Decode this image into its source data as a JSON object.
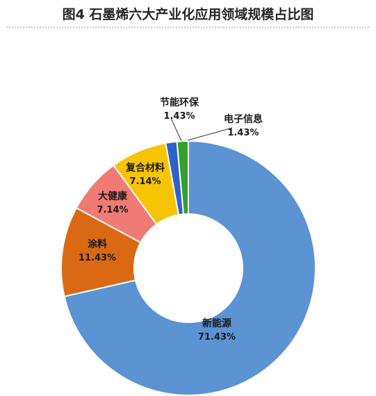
{
  "title": "图4 石墨烯六大产业化应用领域规模占比图",
  "chart_data": {
    "type": "donut",
    "title": "图4 石墨烯六大产业化应用领域规模占比图",
    "slices": [
      {
        "name": "新能源",
        "value": 71.43,
        "label": "71.43%",
        "color": "#5b93d3"
      },
      {
        "name": "涂料",
        "value": 11.43,
        "label": "11.43%",
        "color": "#d96a13"
      },
      {
        "name": "大健康",
        "value": 7.14,
        "label": "7.14%",
        "color": "#f07a74"
      },
      {
        "name": "复合材料",
        "value": 7.14,
        "label": "7.14%",
        "color": "#f7c401"
      },
      {
        "name": "节能环保",
        "value": 1.43,
        "label": "1.43%",
        "color": "#2f62c9"
      },
      {
        "name": "电子信息",
        "value": 1.43,
        "label": "1.43%",
        "color": "#33a02c"
      }
    ]
  }
}
